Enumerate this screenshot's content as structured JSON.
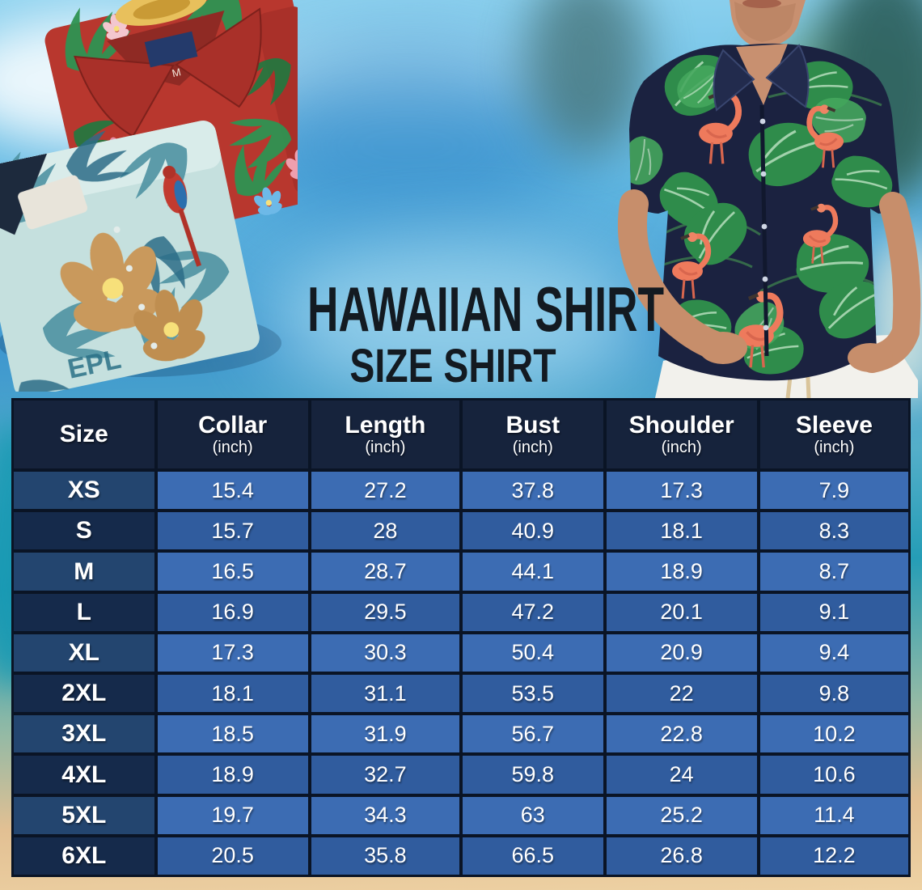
{
  "title": "HAWAIIAN SHIRT",
  "subtitle": "SIZE SHIRT",
  "red_shirt": {
    "collar_label": "M"
  },
  "teal_shirt": {
    "print_text": "EPL"
  },
  "colors": {
    "table_border": "#0a1425",
    "header_bg": "#16233c",
    "row_light": "#3c6cb3",
    "row_dark": "#305c9e",
    "size_col_light": "#23456f",
    "size_col_dark": "#152a4b",
    "title_text": "#131a21",
    "table_text": "#ffffff",
    "sky": "#7cc6e9",
    "sand": "#eed2a4"
  },
  "chart_data": {
    "type": "table",
    "title": "Hawaiian Shirt Size Chart",
    "unit": "inch",
    "columns": [
      {
        "label": "Size",
        "unit": ""
      },
      {
        "label": "Collar",
        "unit": "(inch)"
      },
      {
        "label": "Length",
        "unit": "(inch)"
      },
      {
        "label": "Bust",
        "unit": "(inch)"
      },
      {
        "label": "Shoulder",
        "unit": "(inch)"
      },
      {
        "label": "Sleeve",
        "unit": "(inch)"
      }
    ],
    "rows": [
      {
        "size": "XS",
        "values": [
          "15.4",
          "27.2",
          "37.8",
          "17.3",
          "7.9"
        ]
      },
      {
        "size": "S",
        "values": [
          "15.7",
          "28",
          "40.9",
          "18.1",
          "8.3"
        ]
      },
      {
        "size": "M",
        "values": [
          "16.5",
          "28.7",
          "44.1",
          "18.9",
          "8.7"
        ]
      },
      {
        "size": "L",
        "values": [
          "16.9",
          "29.5",
          "47.2",
          "20.1",
          "9.1"
        ]
      },
      {
        "size": "XL",
        "values": [
          "17.3",
          "30.3",
          "50.4",
          "20.9",
          "9.4"
        ]
      },
      {
        "size": "2XL",
        "values": [
          "18.1",
          "31.1",
          "53.5",
          "22",
          "9.8"
        ]
      },
      {
        "size": "3XL",
        "values": [
          "18.5",
          "31.9",
          "56.7",
          "22.8",
          "10.2"
        ]
      },
      {
        "size": "4XL",
        "values": [
          "18.9",
          "32.7",
          "59.8",
          "24",
          "10.6"
        ]
      },
      {
        "size": "5XL",
        "values": [
          "19.7",
          "34.3",
          "63",
          "25.2",
          "11.4"
        ]
      },
      {
        "size": "6XL",
        "values": [
          "20.5",
          "35.8",
          "66.5",
          "26.8",
          "12.2"
        ]
      }
    ]
  }
}
